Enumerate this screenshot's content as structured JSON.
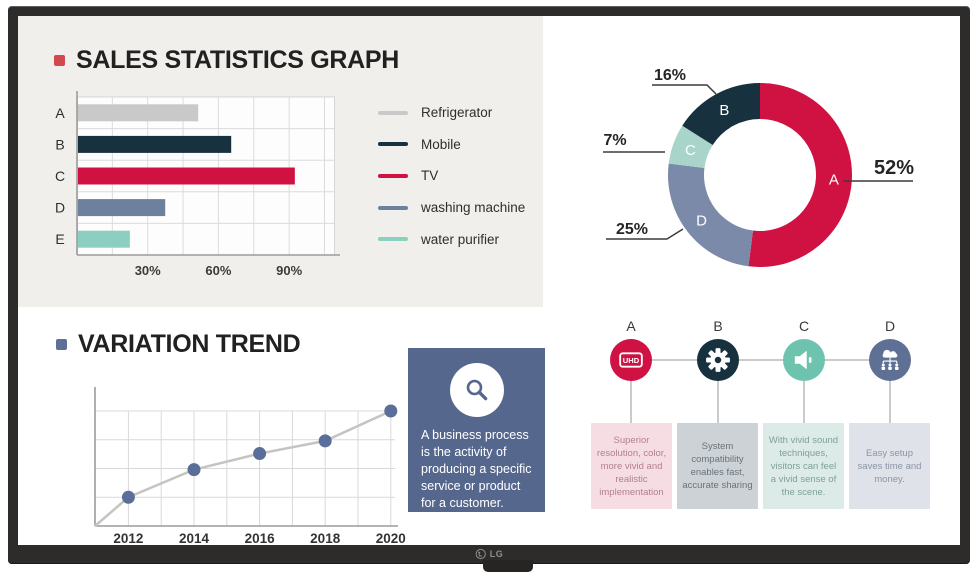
{
  "brand": {
    "logo_text": "LG"
  },
  "sections": {
    "sales": {
      "title": "SALES STATISTICS GRAPH",
      "bullet_color": "#d2484e"
    },
    "trend": {
      "title": "VARIATION TREND",
      "bullet_color": "#5f7095"
    }
  },
  "info_card": {
    "text": "A business process is the activity of producing a specific service or product for a customer.",
    "bg_color": "#56678e",
    "icon": "magnifier-icon"
  },
  "features": {
    "items": [
      {
        "label": "A",
        "icon": "uhd-badge-icon",
        "icon_text": "UHD",
        "circle_color": "#cf1143",
        "box_bg": "#f6dde4",
        "text_color": "#b2808f",
        "description": "Superior resolution, color, more vivid and realistic implementation"
      },
      {
        "label": "B",
        "icon": "gear-icon",
        "circle_color": "#17313f",
        "box_bg": "#cdd2d6",
        "text_color": "#68737d",
        "description": "System compatibility enables fast, accurate sharing"
      },
      {
        "label": "C",
        "icon": "speaker-icon",
        "circle_color": "#6dc3ae",
        "box_bg": "#dcebe7",
        "text_color": "#7fa098",
        "description": "With vivid sound techniques, visitors can feel a vivid sense of the scene."
      },
      {
        "label": "D",
        "icon": "cloud-network-icon",
        "circle_color": "#5f7095",
        "box_bg": "#dfe2e9",
        "text_color": "#8b94a7",
        "description": "Easy setup saves time and money."
      }
    ]
  },
  "chart_data": [
    {
      "type": "bar",
      "orientation": "horizontal",
      "title": "SALES STATISTICS GRAPH",
      "categories": [
        "A",
        "B",
        "C",
        "D",
        "E"
      ],
      "values": [
        51,
        65,
        92,
        37,
        22
      ],
      "value_unit": "%",
      "colors": [
        "#c9c9c9",
        "#17313f",
        "#d01243",
        "#6d809e",
        "#8ccfc0"
      ],
      "xticks": [
        30,
        60,
        90
      ],
      "xtick_labels": [
        "30%",
        "60%",
        "90%"
      ],
      "xlim": [
        0,
        109
      ],
      "grid": true,
      "legend_position": "right",
      "legend": [
        {
          "label": "Refrigerator",
          "color": "#c9c9c9"
        },
        {
          "label": "Mobile",
          "color": "#17313f"
        },
        {
          "label": "TV",
          "color": "#d01243"
        },
        {
          "label": "washing machine",
          "color": "#6d809e"
        },
        {
          "label": "water purifier",
          "color": "#8ccfc0"
        }
      ]
    },
    {
      "type": "pie",
      "subtype": "donut",
      "direction": "clockwise",
      "start_angle": "12-oclock",
      "inner_radius_ratio": 0.61,
      "segments": [
        {
          "label": "A",
          "value": 52,
          "color": "#d01243"
        },
        {
          "label": "D",
          "value": 25,
          "color": "#7b8aa9"
        },
        {
          "label": "C",
          "value": 7,
          "color": "#a9d4c9"
        },
        {
          "label": "B",
          "value": 16,
          "color": "#17313f"
        }
      ],
      "callout_labels": {
        "A": "52%",
        "B": "16%",
        "C": "7%",
        "D": "25%"
      }
    },
    {
      "type": "line",
      "title": "VARIATION TREND",
      "x": [
        2012,
        2014,
        2016,
        2018,
        2020
      ],
      "values": [
        25,
        49,
        63,
        74,
        100
      ],
      "ylim": [
        0,
        100
      ],
      "grid": true,
      "starts_at_origin": true,
      "line_color": "#c6c3c0",
      "point_color": "#5b6e99"
    }
  ]
}
